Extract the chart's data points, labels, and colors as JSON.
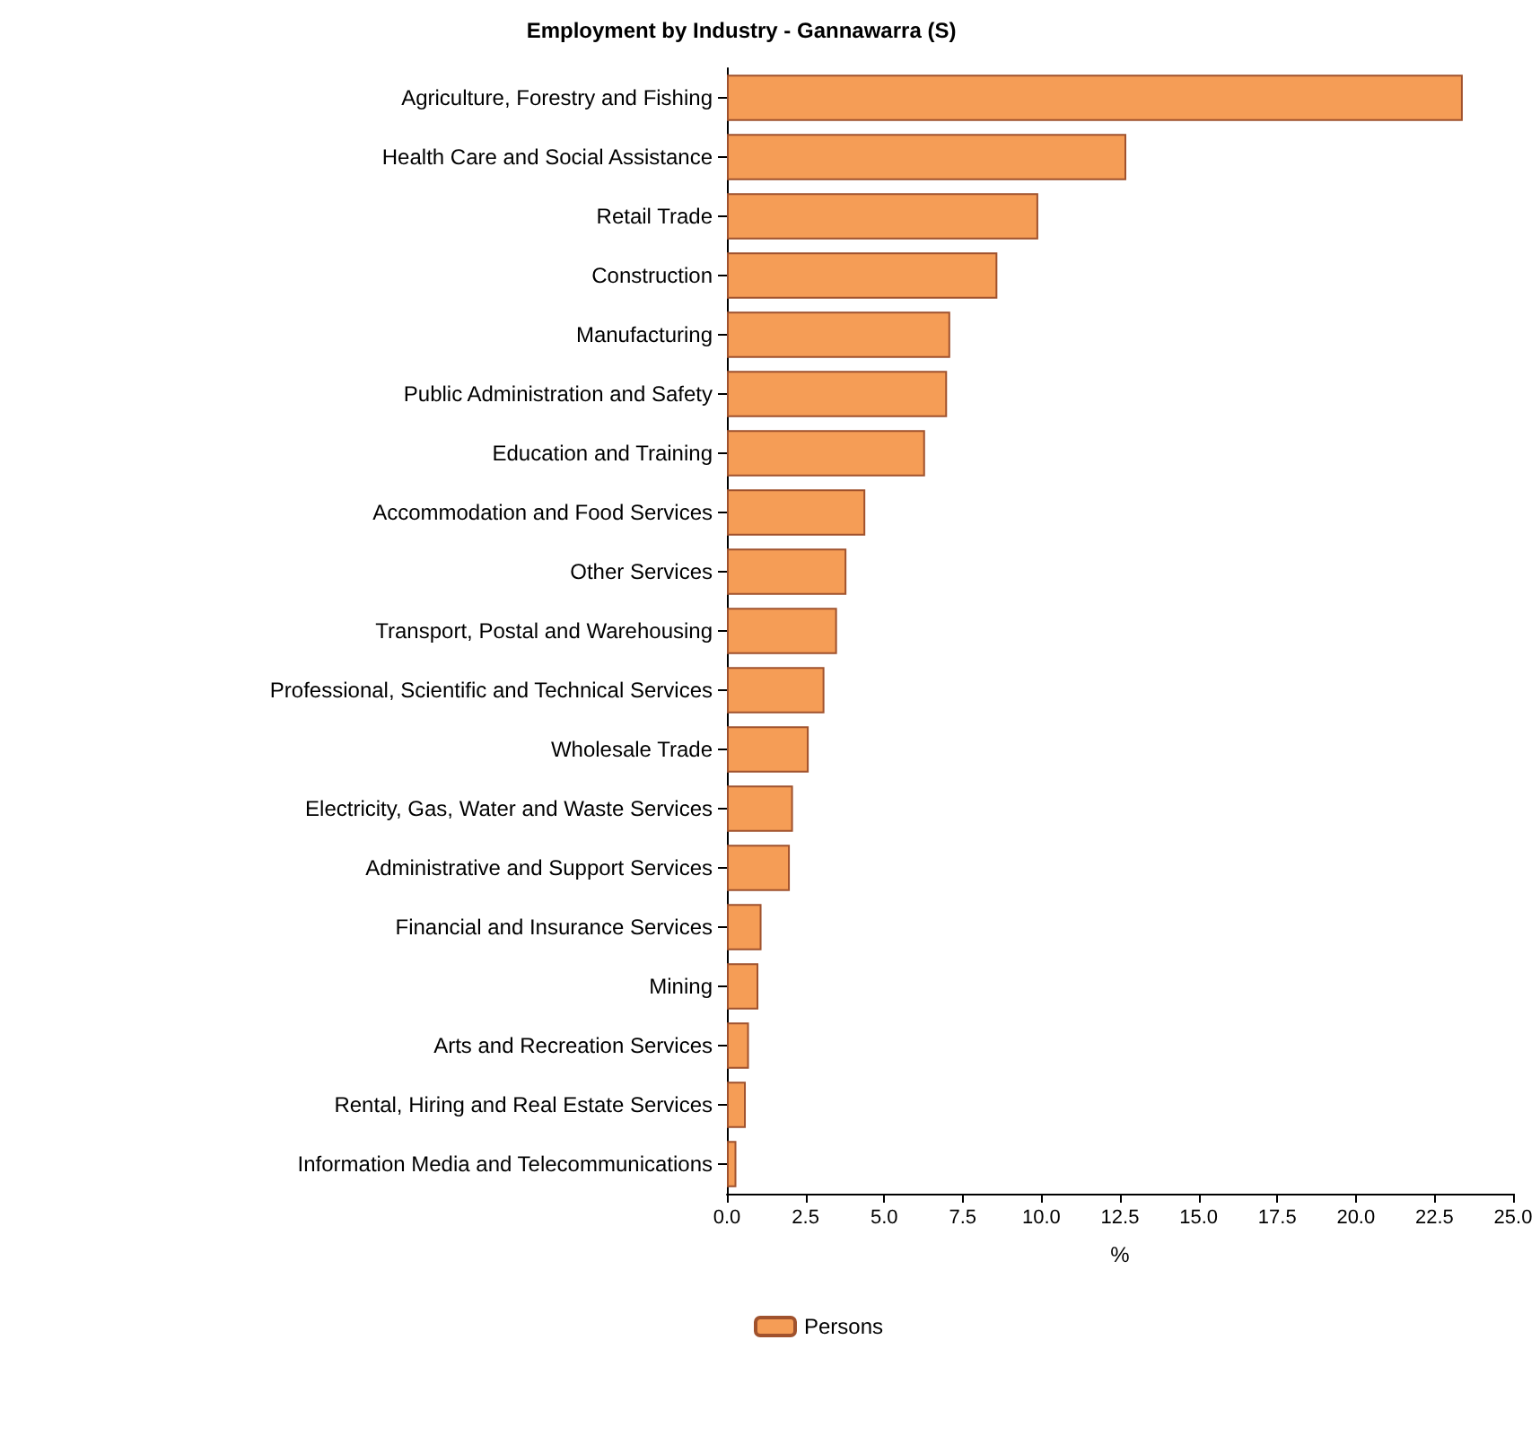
{
  "chart_data": {
    "type": "bar",
    "orientation": "horizontal",
    "title": "Employment by Industry - Gannawarra (S)",
    "categories": [
      "Agriculture, Forestry and Fishing",
      "Health Care and Social Assistance",
      "Retail Trade",
      "Construction",
      "Manufacturing",
      "Public Administration and Safety",
      "Education and Training",
      "Accommodation and Food Services",
      "Other Services",
      "Transport, Postal and Warehousing",
      "Professional, Scientific and Technical Services",
      "Wholesale Trade",
      "Electricity, Gas, Water and Waste Services",
      "Administrative and Support Services",
      "Financial and Insurance Services",
      "Mining",
      "Arts and Recreation Services",
      "Rental, Hiring and Real Estate Services",
      "Information Media and Telecommunications"
    ],
    "series": [
      {
        "name": "Persons",
        "color": "#f59d56",
        "values": [
          23.4,
          12.7,
          9.9,
          8.6,
          7.1,
          7.0,
          6.3,
          4.4,
          3.8,
          3.5,
          3.1,
          2.6,
          2.1,
          2.0,
          1.1,
          1.0,
          0.7,
          0.6,
          0.3
        ]
      }
    ],
    "xlabel": "%",
    "xlim": [
      0,
      25
    ],
    "xticks": [
      {
        "value": 0,
        "label": "0.0"
      },
      {
        "value": 2.5,
        "label": "2.5"
      },
      {
        "value": 5,
        "label": "5.0"
      },
      {
        "value": 7.5,
        "label": "7.5"
      },
      {
        "value": 10,
        "label": "10.0"
      },
      {
        "value": 12.5,
        "label": "12.5"
      },
      {
        "value": 15,
        "label": "15.0"
      },
      {
        "value": 17.5,
        "label": "17.5"
      },
      {
        "value": 20,
        "label": "20.0"
      },
      {
        "value": 22.5,
        "label": "22.5"
      },
      {
        "value": 25,
        "label": "25.0"
      }
    ],
    "grid": false,
    "legend": "bottom"
  }
}
